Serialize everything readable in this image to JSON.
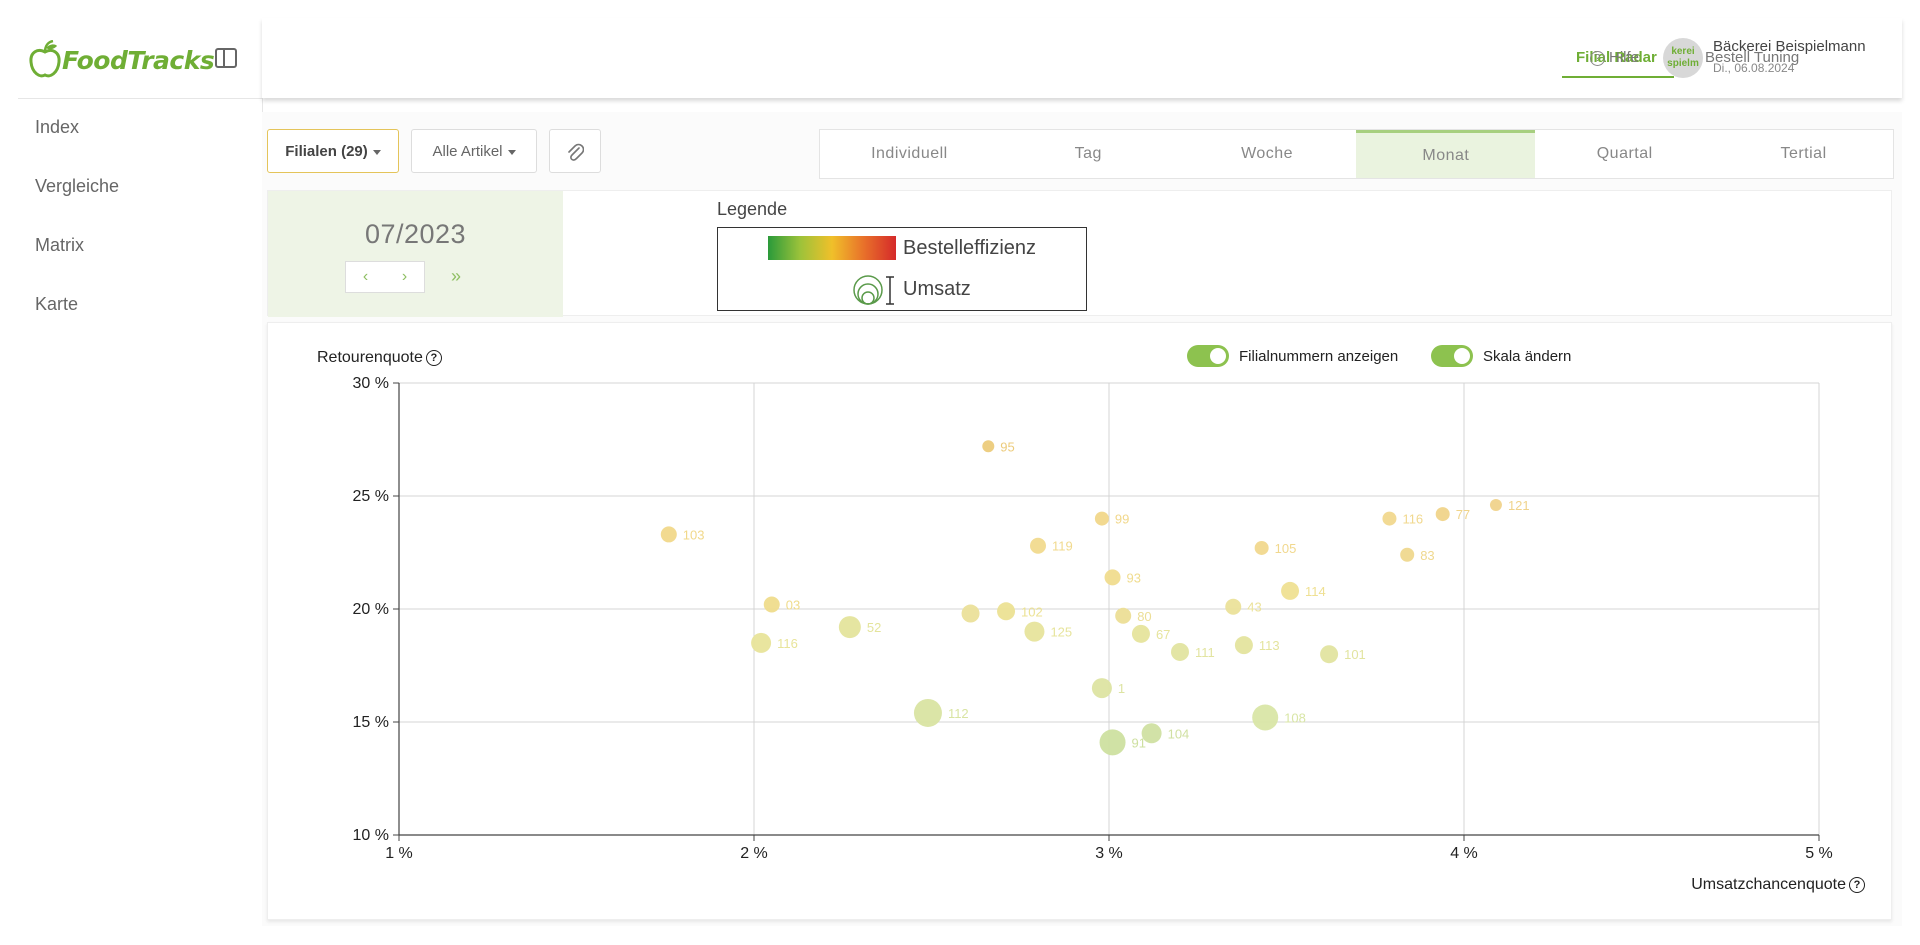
{
  "app": {
    "logo_text": "FoodTracks"
  },
  "sidebar": {
    "items": [
      {
        "label": "Index"
      },
      {
        "label": "Vergleiche"
      },
      {
        "label": "Matrix"
      },
      {
        "label": "Karte"
      }
    ]
  },
  "topbar": {
    "nav_active": "Filial Radar",
    "nav_2": "Bestell Tuning",
    "help": "Hilfe",
    "user_name": "Bäckerei Beispielmann",
    "user_date": "Di., 06.08.2024",
    "avatar_text": "kerei spielm"
  },
  "filters": {
    "branches": "Filialen (29)",
    "articles": "Alle Artikel"
  },
  "period_tabs": [
    "Individuell",
    "Tag",
    "Woche",
    "Monat",
    "Quartal",
    "Tertial"
  ],
  "period_active": "Monat",
  "date": {
    "label": "07/2023",
    "prev": "‹",
    "next": "›",
    "fast": "»"
  },
  "legend": {
    "title": "Legende",
    "efficiency": "Bestelleffizienz",
    "revenue": "Umsatz",
    "gradient_colors": [
      "#2a9a3a",
      "#9cc23a",
      "#f0c02a",
      "#e8702a",
      "#d52a2a"
    ]
  },
  "toggles": {
    "branch_numbers": "Filialnummern anzeigen",
    "scale": "Skala ändern"
  },
  "chart_data": {
    "type": "scatter",
    "title": "",
    "xlabel": "Umsatzchancenquote",
    "ylabel": "Retourenquote",
    "xlim": [
      1,
      5
    ],
    "ylim": [
      10,
      30
    ],
    "xticks": [
      "1 %",
      "2 %",
      "3 %",
      "4 %",
      "5 %"
    ],
    "yticks": [
      "10 %",
      "15 %",
      "20 %",
      "25 %",
      "30 %"
    ],
    "grid": true,
    "points": [
      {
        "label": "95",
        "x": 2.66,
        "y": 27.2,
        "r": 6,
        "color": "#eccb7b"
      },
      {
        "label": "103",
        "x": 1.76,
        "y": 23.3,
        "r": 8,
        "color": "#f1d88a"
      },
      {
        "label": "99",
        "x": 2.98,
        "y": 24.0,
        "r": 7,
        "color": "#f1d78a"
      },
      {
        "label": "119",
        "x": 2.8,
        "y": 22.8,
        "r": 8,
        "color": "#f1da8e"
      },
      {
        "label": "116",
        "x": 3.79,
        "y": 24.0,
        "r": 7,
        "color": "#f1d88e"
      },
      {
        "label": "77",
        "x": 3.94,
        "y": 24.2,
        "r": 7,
        "color": "#f0d48a"
      },
      {
        "label": "121",
        "x": 4.09,
        "y": 24.6,
        "r": 6,
        "color": "#f0d38c"
      },
      {
        "label": "105",
        "x": 3.43,
        "y": 22.7,
        "r": 7,
        "color": "#f1d88e"
      },
      {
        "label": "83",
        "x": 3.84,
        "y": 22.4,
        "r": 7,
        "color": "#efd88e"
      },
      {
        "label": "93",
        "x": 3.01,
        "y": 21.4,
        "r": 8,
        "color": "#f0dc8e"
      },
      {
        "label": "03",
        "x": 2.05,
        "y": 20.2,
        "r": 8,
        "color": "#efdc8c"
      },
      {
        "label": "114",
        "x": 3.51,
        "y": 20.8,
        "r": 9,
        "color": "#efe092"
      },
      {
        "label": "116",
        "x": 2.02,
        "y": 18.5,
        "r": 10,
        "color": "#e8e49a"
      },
      {
        "label": "52",
        "x": 2.27,
        "y": 19.2,
        "r": 11,
        "color": "#e4e49c"
      },
      {
        "label": "",
        "x": 2.61,
        "y": 19.8,
        "r": 9,
        "color": "#ebe09a"
      },
      {
        "label": "102",
        "x": 2.71,
        "y": 19.9,
        "r": 9,
        "color": "#ece294"
      },
      {
        "label": "125",
        "x": 2.79,
        "y": 19.0,
        "r": 10,
        "color": "#e7e49c"
      },
      {
        "label": "80",
        "x": 3.04,
        "y": 19.7,
        "r": 8,
        "color": "#ecde96"
      },
      {
        "label": "67",
        "x": 3.09,
        "y": 18.9,
        "r": 9,
        "color": "#e6e49c"
      },
      {
        "label": "43",
        "x": 3.35,
        "y": 20.1,
        "r": 8,
        "color": "#ebe29a"
      },
      {
        "label": "111",
        "x": 3.2,
        "y": 18.1,
        "r": 9,
        "color": "#e2e4a0"
      },
      {
        "label": "113",
        "x": 3.38,
        "y": 18.4,
        "r": 9,
        "color": "#e4e49e"
      },
      {
        "label": "101",
        "x": 3.62,
        "y": 18.0,
        "r": 9,
        "color": "#e2e4a0"
      },
      {
        "label": "1",
        "x": 2.98,
        "y": 16.5,
        "r": 10,
        "color": "#dde4a2"
      },
      {
        "label": "112",
        "x": 2.49,
        "y": 15.4,
        "r": 14,
        "color": "#d9e4a2"
      },
      {
        "label": "108",
        "x": 3.44,
        "y": 15.2,
        "r": 13,
        "color": "#d9e6a6"
      },
      {
        "label": "104",
        "x": 3.12,
        "y": 14.5,
        "r": 10,
        "color": "#d0e0a2"
      },
      {
        "label": "91",
        "x": 3.01,
        "y": 14.1,
        "r": 13,
        "color": "#cee0a0"
      }
    ]
  }
}
